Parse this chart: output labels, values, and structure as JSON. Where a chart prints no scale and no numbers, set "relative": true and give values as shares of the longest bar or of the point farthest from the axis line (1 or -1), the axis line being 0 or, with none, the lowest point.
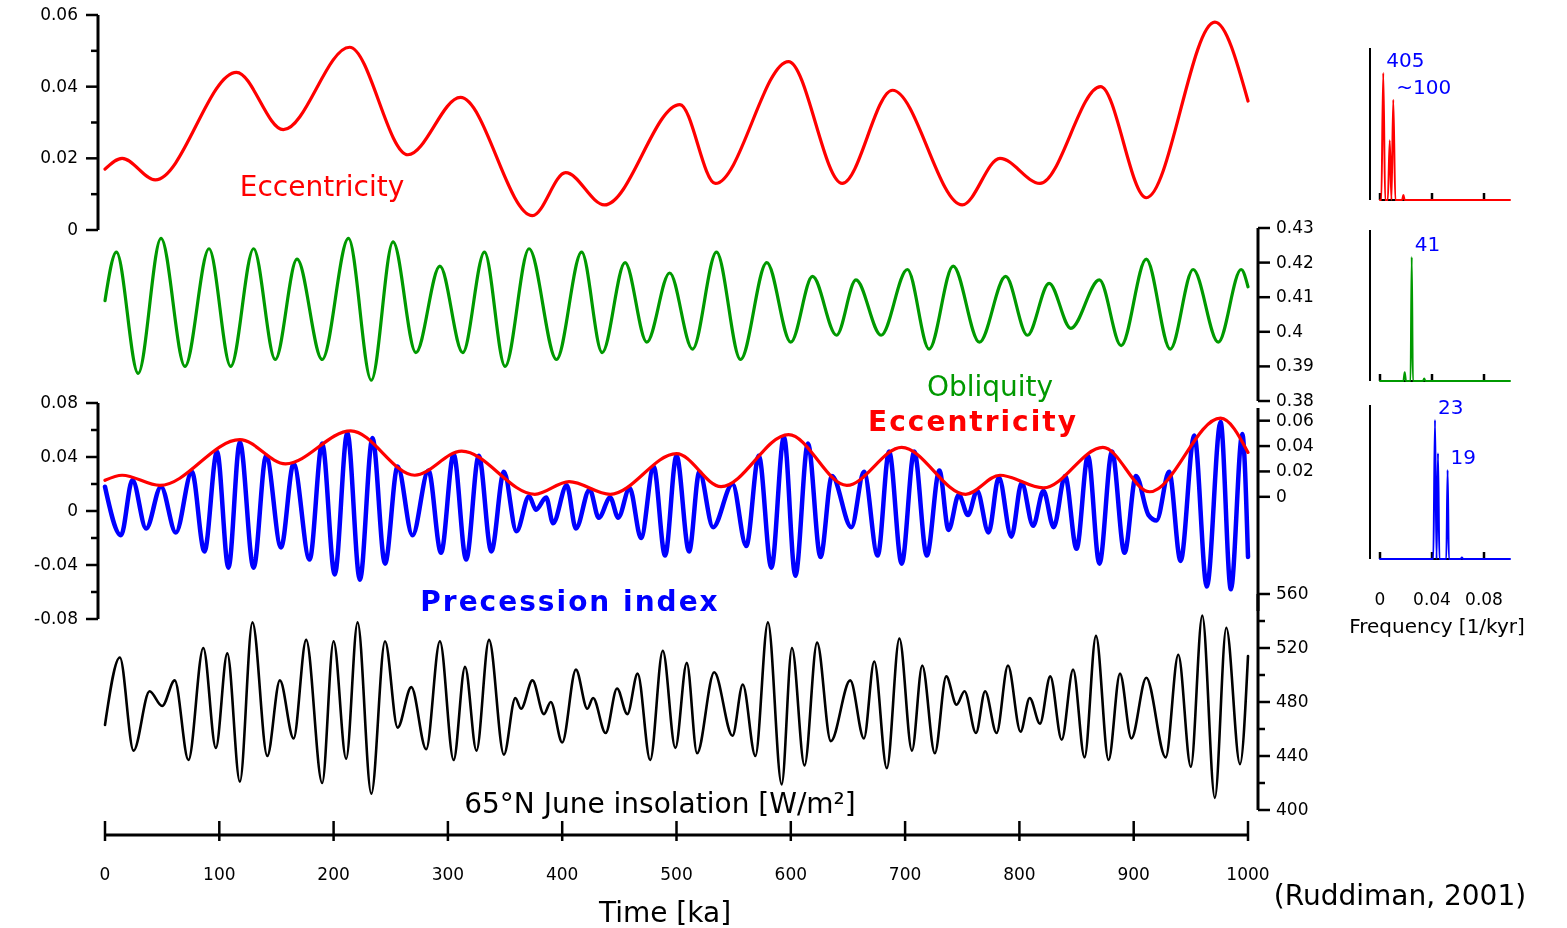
{
  "chart_data": [
    {
      "type": "line",
      "xlim": [
        0,
        1000
      ],
      "ylim": [
        0,
        0.06
      ],
      "yticks": [
        0,
        {
          "value": 0.01,
          "label": null
        },
        0.02,
        {
          "value": 0.03,
          "label": null
        },
        0.04,
        {
          "value": 0.05,
          "label": null
        },
        0.06
      ],
      "tick_labels": "y",
      "series": [
        {
          "name": "Eccentricity",
          "color": "#ff0000",
          "x": [
            0,
            15,
            44,
            115,
            156,
            214,
            265,
            311,
            374,
            403,
            437,
            503,
            534,
            598,
            645,
            689,
            750,
            783,
            818,
            871,
            911,
            971,
            1000
          ],
          "values": [
            0.017,
            0.02,
            0.014,
            0.044,
            0.028,
            0.051,
            0.021,
            0.037,
            0.004,
            0.016,
            0.007,
            0.035,
            0.013,
            0.047,
            0.013,
            0.039,
            0.007,
            0.02,
            0.013,
            0.04,
            0.009,
            0.058,
            0.036
          ]
        }
      ]
    },
    {
      "type": "line",
      "xlim": [
        0,
        1000
      ],
      "ylim": [
        0.38,
        0.43
      ],
      "yticks": [
        0.38,
        0.39,
        0.4,
        0.41,
        0.42,
        0.43
      ],
      "tick_labels": "y",
      "series": [
        {
          "name": "Obliquity",
          "color": "#009900",
          "x": [
            0,
            10,
            29,
            49,
            70,
            91,
            110,
            130,
            149,
            168,
            190,
            213,
            233,
            252,
            272,
            293,
            313,
            332,
            350,
            371,
            395,
            417,
            435,
            455,
            474,
            494,
            514,
            535,
            556,
            579,
            600,
            619,
            640,
            657,
            679,
            702,
            721,
            742,
            765,
            788,
            807,
            826,
            845,
            870,
            889,
            911,
            932,
            952,
            974,
            994,
            1000
          ],
          "values": [
            0.409,
            0.423,
            0.388,
            0.427,
            0.39,
            0.424,
            0.39,
            0.424,
            0.392,
            0.421,
            0.392,
            0.427,
            0.386,
            0.426,
            0.394,
            0.419,
            0.394,
            0.423,
            0.39,
            0.424,
            0.392,
            0.423,
            0.394,
            0.42,
            0.397,
            0.417,
            0.395,
            0.423,
            0.392,
            0.42,
            0.397,
            0.416,
            0.399,
            0.415,
            0.399,
            0.418,
            0.395,
            0.419,
            0.397,
            0.416,
            0.399,
            0.414,
            0.401,
            0.415,
            0.396,
            0.421,
            0.395,
            0.418,
            0.397,
            0.418,
            0.413
          ]
        }
      ]
    },
    {
      "type": "line",
      "xlim": [
        0,
        1000
      ],
      "ylim": [
        -0.08,
        0.08
      ],
      "yticks": [
        -0.08,
        {
          "value": -0.06,
          "label": null
        },
        -0.04,
        {
          "value": -0.02,
          "label": null
        },
        0,
        {
          "value": 0.02,
          "label": null
        },
        0.04,
        {
          "value": 0.06,
          "label": null
        },
        0.08
      ],
      "y2lim": [
        -0.09,
        0.07
      ],
      "y2ticks": [
        0,
        0.02,
        0.04,
        0.06
      ],
      "tick_labels": "y",
      "series": [
        {
          "name": "Precession index",
          "color": "#0000ff",
          "x": [
            0,
            14,
            24,
            36,
            49,
            62,
            76,
            87,
            98,
            108,
            118,
            130,
            141,
            154,
            165,
            179,
            190,
            201,
            212,
            223,
            234,
            245,
            256,
            269,
            283,
            294,
            305,
            316,
            327,
            338,
            349,
            360,
            371,
            377,
            386,
            392,
            404,
            412,
            424,
            432,
            442,
            449,
            459,
            469,
            480,
            490,
            500,
            511,
            520,
            532,
            549,
            561,
            572,
            583,
            594,
            604,
            615,
            626,
            636,
            653,
            664,
            676,
            686,
            697,
            708,
            719,
            730,
            738,
            747,
            755,
            763,
            773,
            782,
            793,
            802,
            812,
            821,
            830,
            840,
            850,
            860,
            870,
            881,
            892,
            902,
            913,
            920,
            931,
            941,
            953,
            964,
            976,
            985,
            995,
            1000
          ],
          "values": [
            0.018,
            -0.018,
            0.023,
            -0.013,
            0.018,
            -0.016,
            0.029,
            -0.03,
            0.044,
            -0.042,
            0.051,
            -0.042,
            0.041,
            -0.027,
            0.035,
            -0.036,
            0.05,
            -0.047,
            0.058,
            -0.051,
            0.054,
            -0.039,
            0.033,
            -0.018,
            0.03,
            -0.031,
            0.042,
            -0.036,
            0.041,
            -0.03,
            0.029,
            -0.015,
            0.011,
            0.001,
            0.01,
            -0.009,
            0.019,
            -0.013,
            0.016,
            -0.005,
            0.01,
            -0.005,
            0.017,
            -0.02,
            0.033,
            -0.033,
            0.041,
            -0.03,
            0.029,
            -0.012,
            0.02,
            -0.026,
            0.041,
            -0.042,
            0.055,
            -0.048,
            0.05,
            -0.034,
            0.026,
            -0.012,
            0.029,
            -0.033,
            0.044,
            -0.039,
            0.044,
            -0.033,
            0.03,
            -0.014,
            0.012,
            -0.003,
            0.015,
            -0.016,
            0.025,
            -0.019,
            0.021,
            -0.011,
            0.015,
            -0.012,
            0.026,
            -0.028,
            0.041,
            -0.039,
            0.044,
            -0.031,
            0.026,
            -0.003,
            -0.007,
            0.029,
            -0.037,
            0.056,
            -0.056,
            0.066,
            -0.058,
            0.057,
            -0.034
          ]
        },
        {
          "name": "Eccentricity",
          "color": "#ff0000",
          "axis": "y2",
          "x": [
            0,
            15,
            48,
            118,
            158,
            215,
            271,
            312,
            376,
            406,
            442,
            500,
            539,
            598,
            649,
            697,
            753,
            783,
            821,
            873,
            914,
            976,
            1000
          ],
          "values": [
            0.013,
            0.017,
            0.009,
            0.045,
            0.026,
            0.052,
            0.017,
            0.036,
            0.002,
            0.012,
            0.002,
            0.034,
            0.008,
            0.049,
            0.009,
            0.039,
            0.002,
            0.017,
            0.007,
            0.039,
            0.004,
            0.062,
            0.035
          ]
        }
      ]
    },
    {
      "type": "line",
      "xlim": [
        0,
        1000
      ],
      "ylim": [
        400,
        560
      ],
      "yticks": [
        400,
        {
          "value": 420,
          "label": null
        },
        440,
        {
          "value": 460,
          "label": null
        },
        480,
        {
          "value": 500,
          "label": null
        },
        520,
        {
          "value": 540,
          "label": null
        },
        560
      ],
      "xticks": [
        0,
        100,
        200,
        300,
        400,
        500,
        600,
        700,
        800,
        900,
        1000
      ],
      "xlabel": "Time [ka]",
      "annotations": [
        "(Ruddiman, 2001)"
      ],
      "series": [
        {
          "name": "65°N June insolation [W/m²]",
          "color": "#000000",
          "x": [
            0,
            13,
            25,
            39,
            50,
            61,
            73,
            86,
            97,
            107,
            118,
            129,
            142,
            153,
            165,
            176,
            190,
            200,
            211,
            221,
            233,
            245,
            256,
            268,
            281,
            293,
            305,
            315,
            325,
            336,
            349,
            359,
            364,
            374,
            384,
            390,
            400,
            412,
            422,
            427,
            438,
            448,
            457,
            466,
            477,
            488,
            499,
            509,
            518,
            533,
            549,
            558,
            569,
            580,
            592,
            601,
            612,
            623,
            635,
            652,
            664,
            673,
            684,
            695,
            706,
            715,
            726,
            736,
            745,
            752,
            762,
            770,
            780,
            790,
            801,
            809,
            818,
            827,
            837,
            847,
            857,
            867,
            878,
            888,
            898,
            911,
            928,
            939,
            950,
            960,
            971,
            981,
            993,
            1000
          ],
          "values": [
            463,
            513,
            444,
            488,
            477,
            496,
            437,
            520,
            446,
            516,
            421,
            539,
            440,
            496,
            453,
            526,
            420,
            525,
            438,
            539,
            412,
            525,
            461,
            491,
            445,
            525,
            437,
            506,
            444,
            526,
            441,
            483,
            475,
            496,
            471,
            480,
            450,
            504,
            475,
            483,
            457,
            490,
            471,
            501,
            437,
            518,
            446,
            509,
            442,
            502,
            455,
            493,
            440,
            539,
            419,
            520,
            433,
            524,
            451,
            496,
            453,
            510,
            431,
            527,
            444,
            507,
            442,
            499,
            478,
            488,
            457,
            488,
            457,
            507,
            458,
            483,
            464,
            499,
            452,
            504,
            439,
            529,
            437,
            501,
            453,
            498,
            439,
            515,
            432,
            544,
            409,
            535,
            434,
            514
          ]
        }
      ]
    },
    {
      "type": "line",
      "relative": true,
      "xlim": [
        0,
        0.1
      ],
      "xticks": [
        0,
        0.04,
        0.08
      ],
      "tick_labels": false,
      "annotations": [
        {
          "text": "405",
          "x": 0.0025,
          "y": 1
        },
        {
          "text": "~100",
          "x": 0.0102,
          "y": 0.79
        }
      ],
      "series": [
        {
          "color": "#ff0000",
          "x": [
            0,
            0.001,
            0.0025,
            0.004,
            0.006,
            0.0075,
            0.0088,
            0.0102,
            0.0118,
            0.017,
            0.018,
            0.019,
            0.1
          ],
          "values": [
            0,
            0,
            1,
            0,
            0,
            0.47,
            0,
            0.79,
            0,
            0,
            0.04,
            0,
            0
          ]
        }
      ]
    },
    {
      "type": "line",
      "relative": true,
      "xlim": [
        0,
        0.1
      ],
      "xticks": [
        0,
        0.04,
        0.08
      ],
      "tick_labels": false,
      "annotations": [
        {
          "text": "41",
          "x": 0.0244,
          "y": 1
        }
      ],
      "series": [
        {
          "color": "#009900",
          "x": [
            0,
            0.018,
            0.019,
            0.02,
            0.0235,
            0.0244,
            0.0253,
            0.033,
            0.034,
            0.035,
            0.1
          ],
          "values": [
            0,
            0,
            0.07,
            0,
            0,
            1,
            0,
            0,
            0.02,
            0,
            0
          ]
        }
      ]
    },
    {
      "type": "line",
      "relative": true,
      "xlim": [
        0,
        0.1
      ],
      "xticks": [
        0,
        0.04,
        0.08
      ],
      "xlabel": "Frequency [1/kyr]",
      "tick_labels": "x",
      "annotations": [
        {
          "text": "23",
          "x": 0.0423,
          "y": 1
        },
        {
          "text": "19",
          "x": 0.052,
          "y": 0.64
        }
      ],
      "series": [
        {
          "color": "#0000ff",
          "x": [
            0,
            0.041,
            0.0423,
            0.0435,
            0.0446,
            0.0457,
            0.051,
            0.052,
            0.053,
            0.062,
            0.063,
            0.064,
            0.1
          ],
          "values": [
            0,
            0,
            1,
            0,
            0.76,
            0,
            0,
            0.64,
            0,
            0,
            0.01,
            0,
            0
          ]
        }
      ]
    }
  ]
}
